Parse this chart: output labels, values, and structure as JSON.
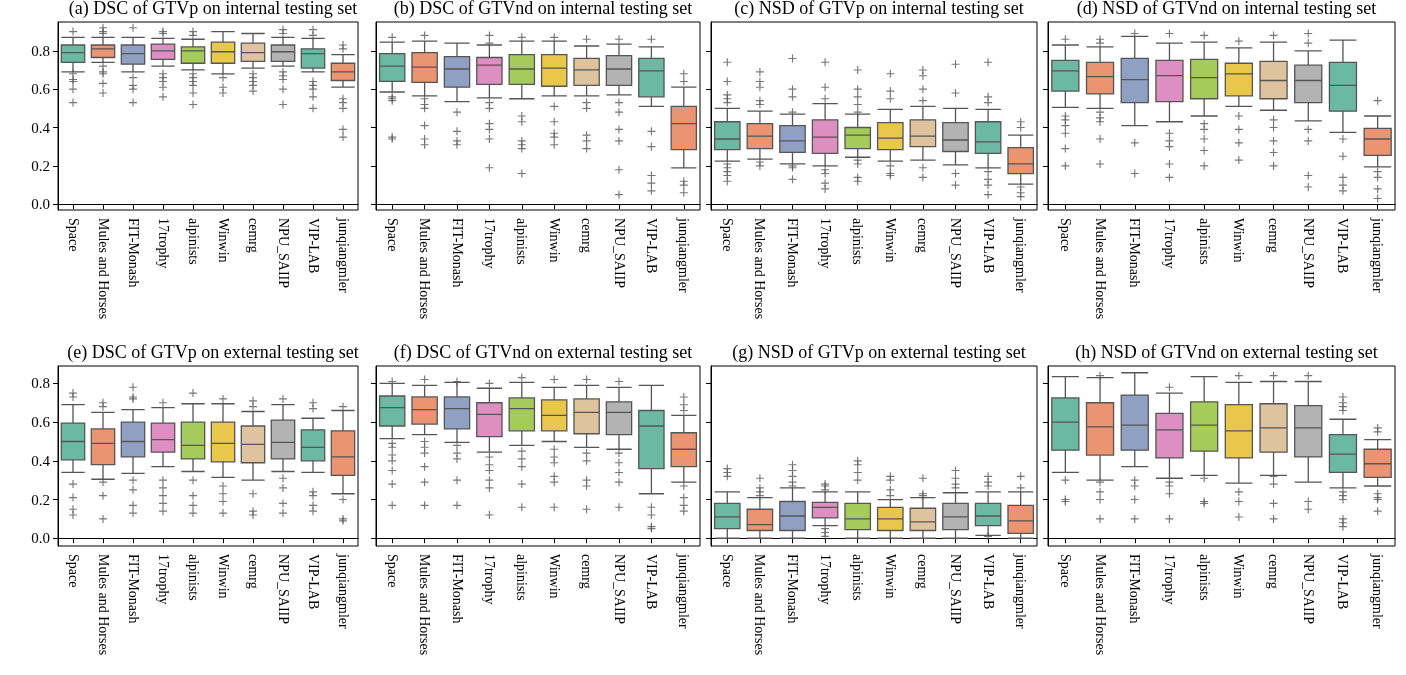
{
  "chart_data": [
    {
      "type": "box",
      "title": "(a) DSC of GTVp on internal testing set",
      "categories": [
        "Space",
        "Mules and Horses",
        "FIT-Monash",
        "17trophy",
        "alpinists",
        "Winwin",
        "cemrg",
        "NPU_SAIIP",
        "VIP-LAB",
        "junqiangmler"
      ],
      "colors": [
        "#6ab9a0",
        "#ea9471",
        "#8fa0c3",
        "#de8fc1",
        "#a5cc5b",
        "#e8c74a",
        "#dfc39e",
        "#b3b3b3",
        "#6ab9a0",
        "#ea9471"
      ],
      "ylim": [
        -0.03,
        0.95
      ],
      "yticks": [
        {
          "value": 0,
          "label": "0.0"
        },
        {
          "value": 0.2,
          "label": "0.2"
        },
        {
          "value": 0.4,
          "label": "0.4"
        },
        {
          "value": 0.6,
          "label": "0.6"
        },
        {
          "value": 0.8,
          "label": "0.8"
        }
      ],
      "boxes": [
        {
          "low": 0.69,
          "q1": 0.74,
          "median": 0.79,
          "q3": 0.83,
          "high": 0.87,
          "outliers": [
            0.9,
            0.68,
            0.65,
            0.64,
            0.6,
            0.53
          ]
        },
        {
          "low": 0.74,
          "q1": 0.765,
          "median": 0.81,
          "q3": 0.83,
          "high": 0.87,
          "outliers": [
            0.92,
            0.9,
            0.89,
            0.72,
            0.69,
            0.68,
            0.63,
            0.58
          ]
        },
        {
          "low": 0.69,
          "q1": 0.73,
          "median": 0.785,
          "q3": 0.83,
          "high": 0.87,
          "outliers": [
            0.92,
            0.66,
            0.62,
            0.6,
            0.53
          ]
        },
        {
          "low": 0.72,
          "q1": 0.755,
          "median": 0.8,
          "q3": 0.835,
          "high": 0.865,
          "outliers": [
            0.9,
            0.89,
            0.68,
            0.66,
            0.64,
            0.61,
            0.56
          ]
        },
        {
          "low": 0.7,
          "q1": 0.735,
          "median": 0.8,
          "q3": 0.82,
          "high": 0.86,
          "outliers": [
            0.9,
            0.88,
            0.68,
            0.66,
            0.64,
            0.62,
            0.58,
            0.52
          ]
        },
        {
          "low": 0.68,
          "q1": 0.735,
          "median": 0.795,
          "q3": 0.845,
          "high": 0.9,
          "outliers": [
            0.66,
            0.61,
            0.58
          ]
        },
        {
          "low": 0.71,
          "q1": 0.745,
          "median": 0.79,
          "q3": 0.84,
          "high": 0.89,
          "outliers": [
            0.68,
            0.66,
            0.64,
            0.62,
            0.59
          ]
        },
        {
          "low": 0.72,
          "q1": 0.745,
          "median": 0.795,
          "q3": 0.83,
          "high": 0.87,
          "outliers": [
            0.91,
            0.89,
            0.69,
            0.67,
            0.65,
            0.6,
            0.52
          ]
        },
        {
          "low": 0.69,
          "q1": 0.71,
          "median": 0.785,
          "q3": 0.81,
          "high": 0.865,
          "outliers": [
            0.91,
            0.88,
            0.64,
            0.62,
            0.6,
            0.56,
            0.5
          ]
        },
        {
          "low": 0.61,
          "q1": 0.645,
          "median": 0.69,
          "q3": 0.735,
          "high": 0.78,
          "outliers": [
            0.83,
            0.81,
            0.55,
            0.53,
            0.5,
            0.39,
            0.35
          ]
        }
      ]
    },
    {
      "type": "box",
      "title": "(b) DSC of GTVnd on internal testing set",
      "categories": [
        "Space",
        "Mules and Horses",
        "FIT-Monash",
        "17trophy",
        "alpinists",
        "Winwin",
        "cemrg",
        "NPU_SAIIP",
        "VIP-LAB",
        "junqiangmler"
      ],
      "colors": [
        "#6ab9a0",
        "#ea9471",
        "#8fa0c3",
        "#de8fc1",
        "#a5cc5b",
        "#e8c74a",
        "#dfc39e",
        "#b3b3b3",
        "#6ab9a0",
        "#ea9471"
      ],
      "ylim": [
        -0.03,
        0.95
      ],
      "yticks": [
        {
          "value": 0,
          "label": null
        },
        {
          "value": 0.2,
          "label": null
        },
        {
          "value": 0.4,
          "label": null
        },
        {
          "value": 0.6,
          "label": null
        },
        {
          "value": 0.8,
          "label": null
        }
      ],
      "tick_labels": "x",
      "boxes": [
        {
          "low": 0.585,
          "q1": 0.64,
          "median": 0.72,
          "q3": 0.785,
          "high": 0.845,
          "outliers": [
            0.87,
            0.56,
            0.55,
            0.54,
            0.35,
            0.34
          ]
        },
        {
          "low": 0.565,
          "q1": 0.635,
          "median": 0.715,
          "q3": 0.79,
          "high": 0.85,
          "outliers": [
            0.88,
            0.55,
            0.52,
            0.5,
            0.41,
            0.34,
            0.31
          ]
        },
        {
          "low": 0.535,
          "q1": 0.61,
          "median": 0.705,
          "q3": 0.77,
          "high": 0.84,
          "outliers": [
            0.48,
            0.38,
            0.33,
            0.31
          ]
        },
        {
          "low": 0.555,
          "q1": 0.625,
          "median": 0.725,
          "q3": 0.765,
          "high": 0.83,
          "outliers": [
            0.88,
            0.84,
            0.53,
            0.5,
            0.42,
            0.39,
            0.34,
            0.19
          ]
        },
        {
          "low": 0.55,
          "q1": 0.625,
          "median": 0.705,
          "q3": 0.78,
          "high": 0.85,
          "outliers": [
            0.87,
            0.46,
            0.43,
            0.33,
            0.31,
            0.29,
            0.16
          ]
        },
        {
          "low": 0.565,
          "q1": 0.615,
          "median": 0.71,
          "q3": 0.78,
          "high": 0.85,
          "outliers": [
            0.87,
            0.51,
            0.43,
            0.37,
            0.35,
            0.31
          ]
        },
        {
          "low": 0.565,
          "q1": 0.62,
          "median": 0.7,
          "q3": 0.76,
          "high": 0.825,
          "outliers": [
            0.86,
            0.53,
            0.5,
            0.36,
            0.33,
            0.29
          ]
        },
        {
          "low": 0.57,
          "q1": 0.62,
          "median": 0.705,
          "q3": 0.775,
          "high": 0.835,
          "outliers": [
            0.86,
            0.53,
            0.48,
            0.39,
            0.33,
            0.18,
            0.05
          ]
        },
        {
          "low": 0.51,
          "q1": 0.56,
          "median": 0.695,
          "q3": 0.76,
          "high": 0.82,
          "outliers": [
            0.86,
            0.38,
            0.3,
            0.15,
            0.11,
            0.07
          ]
        },
        {
          "low": 0.19,
          "q1": 0.285,
          "median": 0.42,
          "q3": 0.51,
          "high": 0.61,
          "outliers": [
            0.68,
            0.64,
            0.12,
            0.1,
            0.06
          ]
        }
      ]
    },
    {
      "type": "box",
      "title": "(c) NSD of GTVp on internal testing set",
      "categories": [
        "Space",
        "Mules and Horses",
        "FIT-Monash",
        "17trophy",
        "alpinists",
        "Winwin",
        "cemrg",
        "NPU_SAIIP",
        "VIP-LAB",
        "junqiangmler"
      ],
      "colors": [
        "#6ab9a0",
        "#ea9471",
        "#8fa0c3",
        "#de8fc1",
        "#a5cc5b",
        "#e8c74a",
        "#dfc39e",
        "#b3b3b3",
        "#6ab9a0",
        "#ea9471"
      ],
      "ylim": [
        -0.03,
        0.95
      ],
      "yticks": [
        {
          "value": 0,
          "label": null
        },
        {
          "value": 0.2,
          "label": null
        },
        {
          "value": 0.4,
          "label": null
        },
        {
          "value": 0.6,
          "label": null
        },
        {
          "value": 0.8,
          "label": null
        }
      ],
      "tick_labels": "x",
      "boxes": [
        {
          "low": 0.225,
          "q1": 0.285,
          "median": 0.34,
          "q3": 0.43,
          "high": 0.5,
          "outliers": [
            0.74,
            0.64,
            0.57,
            0.55,
            0.53,
            0.21,
            0.19,
            0.17,
            0.15,
            0.12
          ]
        },
        {
          "low": 0.235,
          "q1": 0.29,
          "median": 0.355,
          "q3": 0.42,
          "high": 0.485,
          "outliers": [
            0.69,
            0.64,
            0.61,
            0.54,
            0.52,
            0.22,
            0.2
          ]
        },
        {
          "low": 0.21,
          "q1": 0.27,
          "median": 0.33,
          "q3": 0.41,
          "high": 0.47,
          "outliers": [
            0.76,
            0.6,
            0.56,
            0.48,
            0.2,
            0.19,
            0.13
          ]
        },
        {
          "low": 0.2,
          "q1": 0.265,
          "median": 0.35,
          "q3": 0.44,
          "high": 0.525,
          "outliers": [
            0.74,
            0.61,
            0.55,
            0.18,
            0.16,
            0.11,
            0.08
          ]
        },
        {
          "low": 0.245,
          "q1": 0.29,
          "median": 0.36,
          "q3": 0.4,
          "high": 0.47,
          "outliers": [
            0.7,
            0.6,
            0.56,
            0.52,
            0.48,
            0.23,
            0.21,
            0.14,
            0.12
          ]
        },
        {
          "low": 0.225,
          "q1": 0.285,
          "median": 0.345,
          "q3": 0.425,
          "high": 0.495,
          "outliers": [
            0.68,
            0.59,
            0.55,
            0.2,
            0.16,
            0.15
          ]
        },
        {
          "low": 0.23,
          "q1": 0.3,
          "median": 0.355,
          "q3": 0.44,
          "high": 0.51,
          "outliers": [
            0.7,
            0.67,
            0.6,
            0.54,
            0.19,
            0.14
          ]
        },
        {
          "low": 0.205,
          "q1": 0.275,
          "median": 0.335,
          "q3": 0.425,
          "high": 0.5,
          "outliers": [
            0.73,
            0.58,
            0.16,
            0.1
          ]
        },
        {
          "low": 0.19,
          "q1": 0.265,
          "median": 0.325,
          "q3": 0.43,
          "high": 0.495,
          "outliers": [
            0.74,
            0.56,
            0.53,
            0.17,
            0.13,
            0.1,
            0.05
          ]
        },
        {
          "low": 0.105,
          "q1": 0.16,
          "median": 0.21,
          "q3": 0.295,
          "high": 0.36,
          "outliers": [
            0.43,
            0.4,
            0.09,
            0.06,
            0.04
          ]
        }
      ]
    },
    {
      "type": "box",
      "title": "(d) NSD of GTVnd on internal testing set",
      "categories": [
        "Space",
        "Mules and Horses",
        "FIT-Monash",
        "17trophy",
        "alpinists",
        "Winwin",
        "cemrg",
        "NPU_SAIIP",
        "VIP-LAB",
        "junqiangmler"
      ],
      "colors": [
        "#6ab9a0",
        "#ea9471",
        "#8fa0c3",
        "#de8fc1",
        "#a5cc5b",
        "#e8c74a",
        "#dfc39e",
        "#b3b3b3",
        "#6ab9a0",
        "#ea9471"
      ],
      "ylim": [
        -0.03,
        0.95
      ],
      "yticks": [
        {
          "value": 0,
          "label": null
        },
        {
          "value": 0.2,
          "label": null
        },
        {
          "value": 0.4,
          "label": null
        },
        {
          "value": 0.6,
          "label": null
        },
        {
          "value": 0.8,
          "label": null
        }
      ],
      "tick_labels": "x",
      "boxes": [
        {
          "low": 0.505,
          "q1": 0.59,
          "median": 0.695,
          "q3": 0.75,
          "high": 0.83,
          "outliers": [
            0.86,
            0.46,
            0.44,
            0.41,
            0.37,
            0.29,
            0.2
          ]
        },
        {
          "low": 0.5,
          "q1": 0.575,
          "median": 0.665,
          "q3": 0.74,
          "high": 0.82,
          "outliers": [
            0.86,
            0.84,
            0.48,
            0.45,
            0.43,
            0.34,
            0.21
          ]
        },
        {
          "low": 0.41,
          "q1": 0.53,
          "median": 0.65,
          "q3": 0.76,
          "high": 0.875,
          "outliers": [
            0.89,
            0.32,
            0.16
          ]
        },
        {
          "low": 0.43,
          "q1": 0.535,
          "median": 0.67,
          "q3": 0.75,
          "high": 0.84,
          "outliers": [
            0.89,
            0.37,
            0.33,
            0.3,
            0.21,
            0.14
          ]
        },
        {
          "low": 0.46,
          "q1": 0.55,
          "median": 0.66,
          "q3": 0.755,
          "high": 0.845,
          "outliers": [
            0.88,
            0.42,
            0.39,
            0.34,
            0.28,
            0.2
          ]
        },
        {
          "low": 0.51,
          "q1": 0.565,
          "median": 0.68,
          "q3": 0.735,
          "high": 0.815,
          "outliers": [
            0.85,
            0.46,
            0.39,
            0.32,
            0.23
          ]
        },
        {
          "low": 0.49,
          "q1": 0.55,
          "median": 0.645,
          "q3": 0.745,
          "high": 0.845,
          "outliers": [
            0.88,
            0.44,
            0.4,
            0.33,
            0.27,
            0.2
          ]
        },
        {
          "low": 0.435,
          "q1": 0.53,
          "median": 0.645,
          "q3": 0.725,
          "high": 0.8,
          "outliers": [
            0.89,
            0.84,
            0.39,
            0.33,
            0.15,
            0.09
          ]
        },
        {
          "low": 0.375,
          "q1": 0.485,
          "median": 0.62,
          "q3": 0.74,
          "high": 0.855,
          "outliers": [
            0.34,
            0.25,
            0.14,
            0.1,
            0.07
          ]
        },
        {
          "low": 0.195,
          "q1": 0.255,
          "median": 0.34,
          "q3": 0.395,
          "high": 0.46,
          "outliers": [
            0.54,
            0.17,
            0.14,
            0.08,
            0.03
          ]
        }
      ]
    },
    {
      "type": "box",
      "title": "(e) DSC of GTVp on external testing set",
      "categories": [
        "Space",
        "Mules and Horses",
        "FIT-Monash",
        "17trophy",
        "alpinists",
        "Winwin",
        "cemrg",
        "NPU_SAIIP",
        "VIP-LAB",
        "junqiangmler"
      ],
      "colors": [
        "#6ab9a0",
        "#ea9471",
        "#8fa0c3",
        "#de8fc1",
        "#a5cc5b",
        "#e8c74a",
        "#dfc39e",
        "#b3b3b3",
        "#6ab9a0",
        "#ea9471"
      ],
      "ylim": [
        -0.04,
        0.89
      ],
      "yticks": [
        {
          "value": 0,
          "label": "0.0"
        },
        {
          "value": 0.2,
          "label": "0.2"
        },
        {
          "value": 0.4,
          "label": "0.4"
        },
        {
          "value": 0.6,
          "label": "0.6"
        },
        {
          "value": 0.8,
          "label": "0.8"
        }
      ],
      "boxes": [
        {
          "low": 0.34,
          "q1": 0.405,
          "median": 0.5,
          "q3": 0.595,
          "high": 0.69,
          "outliers": [
            0.75,
            0.73,
            0.28,
            0.21,
            0.15,
            0.12
          ]
        },
        {
          "low": 0.305,
          "q1": 0.38,
          "median": 0.49,
          "q3": 0.565,
          "high": 0.65,
          "outliers": [
            0.7,
            0.68,
            0.29,
            0.22,
            0.1
          ]
        },
        {
          "low": 0.335,
          "q1": 0.42,
          "median": 0.5,
          "q3": 0.6,
          "high": 0.665,
          "outliers": [
            0.78,
            0.73,
            0.72,
            0.3,
            0.25,
            0.17,
            0.13
          ]
        },
        {
          "low": 0.37,
          "q1": 0.445,
          "median": 0.51,
          "q3": 0.595,
          "high": 0.675,
          "outliers": [
            0.7,
            0.3,
            0.26,
            0.22,
            0.18,
            0.14
          ]
        },
        {
          "low": 0.345,
          "q1": 0.41,
          "median": 0.48,
          "q3": 0.6,
          "high": 0.695,
          "outliers": [
            0.75,
            0.3,
            0.22,
            0.17,
            0.13
          ]
        },
        {
          "low": 0.315,
          "q1": 0.395,
          "median": 0.49,
          "q3": 0.6,
          "high": 0.695,
          "outliers": [
            0.72,
            0.27,
            0.23,
            0.19,
            0.13
          ]
        },
        {
          "low": 0.3,
          "q1": 0.39,
          "median": 0.485,
          "q3": 0.58,
          "high": 0.655,
          "outliers": [
            0.71,
            0.68,
            0.23,
            0.14,
            0.12
          ]
        },
        {
          "low": 0.345,
          "q1": 0.41,
          "median": 0.495,
          "q3": 0.61,
          "high": 0.69,
          "outliers": [
            0.72,
            0.31,
            0.26,
            0.18,
            0.13
          ]
        },
        {
          "low": 0.34,
          "q1": 0.4,
          "median": 0.47,
          "q3": 0.56,
          "high": 0.62,
          "outliers": [
            0.7,
            0.67,
            0.24,
            0.22,
            0.17,
            0.14
          ]
        },
        {
          "low": 0.23,
          "q1": 0.325,
          "median": 0.42,
          "q3": 0.555,
          "high": 0.66,
          "outliers": [
            0.68,
            0.2,
            0.1,
            0.09
          ]
        }
      ]
    },
    {
      "type": "box",
      "title": "(f) DSC of GTVnd on external testing set",
      "categories": [
        "Space",
        "Mules and Horses",
        "FIT-Monash",
        "17trophy",
        "alpinists",
        "Winwin",
        "cemrg",
        "NPU_SAIIP",
        "VIP-LAB",
        "junqiangmler"
      ],
      "colors": [
        "#6ab9a0",
        "#ea9471",
        "#8fa0c3",
        "#de8fc1",
        "#a5cc5b",
        "#e8c74a",
        "#dfc39e",
        "#b3b3b3",
        "#6ab9a0",
        "#ea9471"
      ],
      "ylim": [
        -0.04,
        0.89
      ],
      "yticks": [
        {
          "value": 0,
          "label": null
        },
        {
          "value": 0.2,
          "label": null
        },
        {
          "value": 0.4,
          "label": null
        },
        {
          "value": 0.6,
          "label": null
        },
        {
          "value": 0.8,
          "label": null
        }
      ],
      "tick_labels": "x",
      "boxes": [
        {
          "low": 0.515,
          "q1": 0.58,
          "median": 0.675,
          "q3": 0.735,
          "high": 0.8,
          "outliers": [
            0.81,
            0.49,
            0.47,
            0.43,
            0.4,
            0.35,
            0.28,
            0.17
          ]
        },
        {
          "low": 0.535,
          "q1": 0.59,
          "median": 0.665,
          "q3": 0.73,
          "high": 0.79,
          "outliers": [
            0.82,
            0.5,
            0.47,
            0.44,
            0.37,
            0.29,
            0.17
          ]
        },
        {
          "low": 0.495,
          "q1": 0.565,
          "median": 0.67,
          "q3": 0.73,
          "high": 0.805,
          "outliers": [
            0.81,
            0.48,
            0.44,
            0.41,
            0.3,
            0.17
          ]
        },
        {
          "low": 0.445,
          "q1": 0.525,
          "median": 0.64,
          "q3": 0.7,
          "high": 0.775,
          "outliers": [
            0.8,
            0.42,
            0.38,
            0.35,
            0.3,
            0.26,
            0.12
          ]
        },
        {
          "low": 0.48,
          "q1": 0.555,
          "median": 0.67,
          "q3": 0.725,
          "high": 0.805,
          "outliers": [
            0.83,
            0.45,
            0.41,
            0.37,
            0.28,
            0.16
          ]
        },
        {
          "low": 0.5,
          "q1": 0.555,
          "median": 0.635,
          "q3": 0.715,
          "high": 0.78,
          "outliers": [
            0.82,
            0.46,
            0.42,
            0.39,
            0.32,
            0.29,
            0.16
          ]
        },
        {
          "low": 0.47,
          "q1": 0.54,
          "median": 0.65,
          "q3": 0.72,
          "high": 0.79,
          "outliers": [
            0.82,
            0.44,
            0.4,
            0.3,
            0.27,
            0.15
          ]
        },
        {
          "low": 0.46,
          "q1": 0.535,
          "median": 0.65,
          "q3": 0.705,
          "high": 0.78,
          "outliers": [
            0.81,
            0.44,
            0.39,
            0.34,
            0.29,
            0.16
          ]
        },
        {
          "low": 0.23,
          "q1": 0.36,
          "median": 0.58,
          "q3": 0.66,
          "high": 0.79,
          "outliers": [
            0.16,
            0.12,
            0.06,
            0.05
          ]
        },
        {
          "low": 0.29,
          "q1": 0.37,
          "median": 0.46,
          "q3": 0.545,
          "high": 0.635,
          "outliers": [
            0.73,
            0.69,
            0.66,
            0.27,
            0.21,
            0.17,
            0.14
          ]
        }
      ]
    },
    {
      "type": "box",
      "title": "(g) NSD of GTVp on external testing set",
      "categories": [
        "Space",
        "Mules and Horses",
        "FIT-Monash",
        "17trophy",
        "alpinists",
        "Winwin",
        "cemrg",
        "NPU_SAIIP",
        "VIP-LAB",
        "junqiangmler"
      ],
      "colors": [
        "#6ab9a0",
        "#ea9471",
        "#8fa0c3",
        "#de8fc1",
        "#a5cc5b",
        "#e8c74a",
        "#dfc39e",
        "#b3b3b3",
        "#6ab9a0",
        "#ea9471"
      ],
      "ylim": [
        -0.04,
        0.89
      ],
      "yticks": [
        {
          "value": 0,
          "label": null
        },
        {
          "value": 0.2,
          "label": null
        },
        {
          "value": 0.4,
          "label": null
        },
        {
          "value": 0.6,
          "label": null
        },
        {
          "value": 0.8,
          "label": null
        }
      ],
      "tick_labels": "x",
      "boxes": [
        {
          "low": 0.0,
          "q1": 0.05,
          "median": 0.11,
          "q3": 0.18,
          "high": 0.24,
          "outliers": [
            0.36,
            0.34,
            0.32
          ]
        },
        {
          "low": 0.0,
          "q1": 0.04,
          "median": 0.07,
          "q3": 0.15,
          "high": 0.21,
          "outliers": [
            0.31,
            0.26,
            0.24,
            0.22
          ]
        },
        {
          "low": 0.0,
          "q1": 0.04,
          "median": 0.115,
          "q3": 0.19,
          "high": 0.26,
          "outliers": [
            0.38,
            0.35,
            0.32,
            0.29,
            0.27
          ]
        },
        {
          "low": 0.065,
          "q1": 0.105,
          "median": 0.16,
          "q3": 0.185,
          "high": 0.24,
          "outliers": [
            0.28,
            0.27,
            0.25,
            0.05,
            0.03,
            0.01
          ]
        },
        {
          "low": 0.0,
          "q1": 0.045,
          "median": 0.1,
          "q3": 0.18,
          "high": 0.24,
          "outliers": [
            0.4,
            0.38,
            0.34,
            0.3
          ]
        },
        {
          "low": 0.0,
          "q1": 0.04,
          "median": 0.1,
          "q3": 0.16,
          "high": 0.2,
          "outliers": [
            0.32,
            0.3,
            0.25,
            0.22
          ]
        },
        {
          "low": 0.0,
          "q1": 0.04,
          "median": 0.085,
          "q3": 0.155,
          "high": 0.21,
          "outliers": [
            0.31,
            0.23,
            0.22
          ]
        },
        {
          "low": 0.0,
          "q1": 0.045,
          "median": 0.11,
          "q3": 0.18,
          "high": 0.235,
          "outliers": [
            0.35,
            0.31,
            0.28,
            0.26
          ]
        },
        {
          "low": 0.015,
          "q1": 0.065,
          "median": 0.115,
          "q3": 0.18,
          "high": 0.24,
          "outliers": [
            0.32,
            0.29,
            0.27,
            0.01
          ]
        },
        {
          "low": 0.0,
          "q1": 0.025,
          "median": 0.09,
          "q3": 0.17,
          "high": 0.24,
          "outliers": [
            0.32,
            0.26
          ]
        }
      ]
    },
    {
      "type": "box",
      "title": "(h) NSD of GTVnd on external testing set",
      "categories": [
        "Space",
        "Mules and Horses",
        "FIT-Monash",
        "17trophy",
        "alpinists",
        "Winwin",
        "cemrg",
        "NPU_SAIIP",
        "VIP-LAB",
        "junqiangmler"
      ],
      "colors": [
        "#6ab9a0",
        "#ea9471",
        "#8fa0c3",
        "#de8fc1",
        "#a5cc5b",
        "#e8c74a",
        "#dfc39e",
        "#b3b3b3",
        "#6ab9a0",
        "#ea9471"
      ],
      "ylim": [
        -0.04,
        0.89
      ],
      "yticks": [
        {
          "value": 0,
          "label": null
        },
        {
          "value": 0.2,
          "label": null
        },
        {
          "value": 0.4,
          "label": null
        },
        {
          "value": 0.6,
          "label": null
        },
        {
          "value": 0.8,
          "label": null
        }
      ],
      "tick_labels": "x",
      "boxes": [
        {
          "low": 0.34,
          "q1": 0.455,
          "median": 0.6,
          "q3": 0.725,
          "high": 0.835,
          "outliers": [
            0.3,
            0.2,
            0.19
          ]
        },
        {
          "low": 0.3,
          "q1": 0.43,
          "median": 0.575,
          "q3": 0.7,
          "high": 0.83,
          "outliers": [
            0.84,
            0.29,
            0.24,
            0.2,
            0.1
          ]
        },
        {
          "low": 0.37,
          "q1": 0.455,
          "median": 0.585,
          "q3": 0.74,
          "high": 0.855,
          "outliers": [
            0.3,
            0.27,
            0.2,
            0.1
          ]
        },
        {
          "low": 0.31,
          "q1": 0.415,
          "median": 0.56,
          "q3": 0.645,
          "high": 0.75,
          "outliers": [
            0.78,
            0.29,
            0.27,
            0.23,
            0.1
          ]
        },
        {
          "low": 0.325,
          "q1": 0.45,
          "median": 0.585,
          "q3": 0.705,
          "high": 0.835,
          "outliers": [
            0.31,
            0.19,
            0.18
          ]
        },
        {
          "low": 0.285,
          "q1": 0.415,
          "median": 0.555,
          "q3": 0.69,
          "high": 0.805,
          "outliers": [
            0.84,
            0.24,
            0.19,
            0.11
          ]
        },
        {
          "low": 0.325,
          "q1": 0.445,
          "median": 0.57,
          "q3": 0.695,
          "high": 0.81,
          "outliers": [
            0.84,
            0.32,
            0.28,
            0.18,
            0.1
          ]
        },
        {
          "low": 0.29,
          "q1": 0.42,
          "median": 0.57,
          "q3": 0.685,
          "high": 0.81,
          "outliers": [
            0.84,
            0.19,
            0.15
          ]
        },
        {
          "low": 0.26,
          "q1": 0.34,
          "median": 0.435,
          "q3": 0.535,
          "high": 0.615,
          "outliers": [
            0.73,
            0.7,
            0.68,
            0.66,
            0.24,
            0.22,
            0.2,
            0.1,
            0.08,
            0.06
          ]
        },
        {
          "low": 0.27,
          "q1": 0.315,
          "median": 0.385,
          "q3": 0.46,
          "high": 0.51,
          "outliers": [
            0.57,
            0.55,
            0.23,
            0.21,
            0.2,
            0.14
          ]
        }
      ]
    }
  ]
}
